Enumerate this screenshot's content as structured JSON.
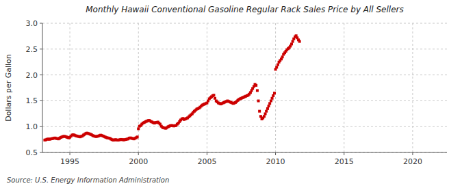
{
  "chart_data": {
    "type": "scatter",
    "title": "Monthly Hawaii Conventional Gasoline Regular Rack Sales Price by All Sellers",
    "ylabel": "Dollars per Gallon",
    "source": "Source: U.S. Energy Information Administration",
    "color": "#cc0000",
    "marker": "square",
    "grid": true,
    "xlim": [
      1993.0,
      2022.5
    ],
    "ylim": [
      0.5,
      3.0
    ],
    "xticks": [
      1995,
      2000,
      2005,
      2010,
      2015,
      2020
    ],
    "yticks": [
      0.5,
      {
        "value": 1.0,
        "label": "1.0"
      },
      1.5,
      {
        "value": 2.0,
        "label": "2.0"
      },
      2.5,
      {
        "value": 3.0,
        "label": "3.0"
      }
    ],
    "x": [
      1993.17,
      1993.25,
      1993.33,
      1993.42,
      1993.5,
      1993.58,
      1993.67,
      1993.75,
      1993.83,
      1993.92,
      1994.0,
      1994.08,
      1994.17,
      1994.25,
      1994.33,
      1994.42,
      1994.5,
      1994.58,
      1994.67,
      1994.75,
      1994.83,
      1994.92,
      1995.0,
      1995.08,
      1995.17,
      1995.25,
      1995.33,
      1995.42,
      1995.5,
      1995.58,
      1995.67,
      1995.75,
      1995.83,
      1995.92,
      1996.0,
      1996.08,
      1996.17,
      1996.25,
      1996.33,
      1996.42,
      1996.5,
      1996.58,
      1996.67,
      1996.75,
      1996.83,
      1996.92,
      1997.0,
      1997.08,
      1997.17,
      1997.25,
      1997.33,
      1997.42,
      1997.5,
      1997.58,
      1997.67,
      1997.75,
      1997.83,
      1997.92,
      1998.0,
      1998.08,
      1998.17,
      1998.25,
      1998.33,
      1998.42,
      1998.5,
      1998.58,
      1998.67,
      1998.75,
      1998.83,
      1998.92,
      1999.0,
      1999.08,
      1999.17,
      1999.25,
      1999.33,
      1999.42,
      1999.5,
      1999.58,
      1999.67,
      1999.75,
      1999.83,
      1999.92,
      2000.0,
      2000.08,
      2000.17,
      2000.25,
      2000.33,
      2000.42,
      2000.5,
      2000.58,
      2000.67,
      2000.75,
      2000.83,
      2000.92,
      2001.0,
      2001.08,
      2001.17,
      2001.25,
      2001.33,
      2001.42,
      2001.5,
      2001.58,
      2001.67,
      2001.75,
      2001.83,
      2001.92,
      2002.0,
      2002.08,
      2002.17,
      2002.25,
      2002.33,
      2002.42,
      2002.5,
      2002.58,
      2002.67,
      2002.75,
      2002.83,
      2002.92,
      2003.0,
      2003.08,
      2003.17,
      2003.25,
      2003.33,
      2003.42,
      2003.5,
      2003.58,
      2003.67,
      2003.75,
      2003.83,
      2003.92,
      2004.0,
      2004.08,
      2004.17,
      2004.25,
      2004.33,
      2004.42,
      2004.5,
      2004.58,
      2004.67,
      2004.75,
      2004.83,
      2004.92,
      2005.0,
      2005.08,
      2005.17,
      2005.25,
      2005.33,
      2005.42,
      2005.5,
      2005.58,
      2005.67,
      2005.75,
      2005.83,
      2005.92,
      2006.0,
      2006.08,
      2006.17,
      2006.25,
      2006.33,
      2006.42,
      2006.5,
      2006.58,
      2006.67,
      2006.75,
      2006.83,
      2006.92,
      2007.0,
      2007.08,
      2007.17,
      2007.25,
      2007.33,
      2007.42,
      2007.5,
      2007.58,
      2007.67,
      2007.75,
      2007.83,
      2007.92,
      2008.0,
      2008.08,
      2008.17,
      2008.25,
      2008.33,
      2008.42,
      2008.5,
      2008.58,
      2008.67,
      2008.75,
      2008.83,
      2008.92,
      2009.0,
      2009.08,
      2009.17,
      2009.25,
      2009.33,
      2009.42,
      2009.5,
      2009.58,
      2009.67,
      2009.75,
      2009.83,
      2009.92,
      2010.0,
      2010.08,
      2010.17,
      2010.25,
      2010.33,
      2010.42,
      2010.5,
      2010.58,
      2010.67,
      2010.75,
      2010.83,
      2010.92,
      2011.0,
      2011.08,
      2011.17,
      2011.25,
      2011.33,
      2011.42,
      2011.5,
      2011.58,
      2011.67,
      2011.75
    ],
    "values": [
      0.74,
      0.745,
      0.755,
      0.76,
      0.755,
      0.76,
      0.765,
      0.77,
      0.775,
      0.78,
      0.772,
      0.768,
      0.762,
      0.775,
      0.79,
      0.8,
      0.808,
      0.812,
      0.808,
      0.8,
      0.79,
      0.782,
      0.795,
      0.815,
      0.838,
      0.842,
      0.835,
      0.825,
      0.818,
      0.812,
      0.808,
      0.802,
      0.812,
      0.82,
      0.838,
      0.852,
      0.868,
      0.875,
      0.868,
      0.86,
      0.852,
      0.842,
      0.828,
      0.818,
      0.812,
      0.808,
      0.812,
      0.818,
      0.828,
      0.835,
      0.828,
      0.818,
      0.808,
      0.798,
      0.788,
      0.782,
      0.778,
      0.772,
      0.758,
      0.748,
      0.738,
      0.742,
      0.748,
      0.742,
      0.738,
      0.742,
      0.748,
      0.752,
      0.748,
      0.742,
      0.748,
      0.752,
      0.758,
      0.762,
      0.778,
      0.782,
      0.775,
      0.768,
      0.762,
      0.775,
      0.785,
      0.8,
      0.958,
      1.008,
      1.02,
      1.048,
      1.068,
      1.08,
      1.092,
      1.102,
      1.112,
      1.12,
      1.115,
      1.098,
      1.088,
      1.078,
      1.068,
      1.078,
      1.082,
      1.088,
      1.068,
      1.048,
      1.008,
      0.988,
      0.978,
      0.972,
      0.968,
      0.982,
      0.998,
      1.008,
      1.018,
      1.022,
      1.018,
      1.012,
      1.018,
      1.022,
      1.048,
      1.068,
      1.098,
      1.128,
      1.148,
      1.158,
      1.138,
      1.148,
      1.158,
      1.168,
      1.188,
      1.208,
      1.228,
      1.248,
      1.278,
      1.298,
      1.318,
      1.338,
      1.348,
      1.358,
      1.378,
      1.398,
      1.418,
      1.428,
      1.438,
      1.448,
      1.458,
      1.498,
      1.538,
      1.558,
      1.578,
      1.598,
      1.608,
      1.548,
      1.498,
      1.478,
      1.458,
      1.448,
      1.438,
      1.448,
      1.458,
      1.468,
      1.478,
      1.488,
      1.498,
      1.488,
      1.478,
      1.468,
      1.458,
      1.448,
      1.458,
      1.468,
      1.488,
      1.508,
      1.528,
      1.538,
      1.548,
      1.558,
      1.568,
      1.578,
      1.588,
      1.598,
      1.608,
      1.628,
      1.658,
      1.698,
      1.738,
      1.778,
      1.818,
      1.798,
      1.698,
      1.498,
      1.298,
      1.198,
      1.148,
      1.168,
      1.198,
      1.248,
      1.298,
      1.348,
      1.398,
      1.448,
      1.498,
      1.548,
      1.598,
      1.648,
      2.108,
      2.148,
      2.198,
      2.248,
      2.278,
      2.308,
      2.348,
      2.398,
      2.428,
      2.458,
      2.488,
      2.508,
      2.528,
      2.558,
      2.598,
      2.648,
      2.698,
      2.738,
      2.758,
      2.718,
      2.678,
      2.648
    ]
  }
}
